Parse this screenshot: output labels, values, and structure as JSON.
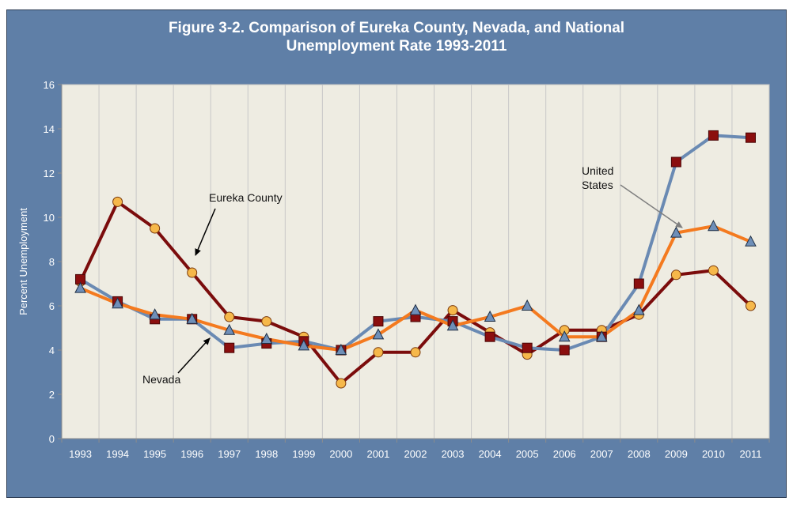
{
  "chart_data": {
    "type": "line",
    "title_line1": "Figure 3-2. Comparison of Eureka County, Nevada, and National",
    "title_line2": "Unemployment Rate 1993-2011",
    "xlabel": "",
    "ylabel": "Percent Unemployment",
    "ylim": [
      0,
      16
    ],
    "yticks": [
      0,
      2,
      4,
      6,
      8,
      10,
      12,
      14,
      16
    ],
    "grid": "vertical",
    "categories": [
      "1993",
      "1994",
      "1995",
      "1996",
      "1997",
      "1998",
      "1999",
      "2000",
      "2001",
      "2002",
      "2003",
      "2004",
      "2005",
      "2006",
      "2007",
      "2008",
      "2009",
      "2010",
      "2011"
    ],
    "series": [
      {
        "name": "Eureka County",
        "color": "#7b0c0c",
        "marker": "circle",
        "marker_color": "#f6b84a",
        "values": [
          7.1,
          10.7,
          9.5,
          7.5,
          5.5,
          5.3,
          4.6,
          2.5,
          3.9,
          3.9,
          5.8,
          4.8,
          3.8,
          4.9,
          4.9,
          5.6,
          7.4,
          7.6,
          6.0
        ]
      },
      {
        "name": "Nevada",
        "color": "#6a8ab3",
        "marker": "square",
        "marker_color": "#8b0e0e",
        "values": [
          7.2,
          6.2,
          5.4,
          5.4,
          4.1,
          4.3,
          4.4,
          4.0,
          5.3,
          5.5,
          5.3,
          4.6,
          4.1,
          4.0,
          4.6,
          7.0,
          12.5,
          13.7,
          13.6
        ]
      },
      {
        "name": "United States",
        "color": "#f47a1f",
        "marker": "triangle",
        "marker_color": "#6f8fb8",
        "values": [
          6.8,
          6.1,
          5.6,
          5.4,
          4.9,
          4.5,
          4.2,
          4.0,
          4.7,
          5.8,
          5.1,
          5.5,
          6.0,
          4.6,
          4.6,
          5.8,
          9.3,
          9.6,
          8.9
        ]
      }
    ],
    "annotations": {
      "eureka": "Eureka County",
      "nevada": "Nevada",
      "us_line1": "United",
      "us_line2": "States"
    }
  }
}
